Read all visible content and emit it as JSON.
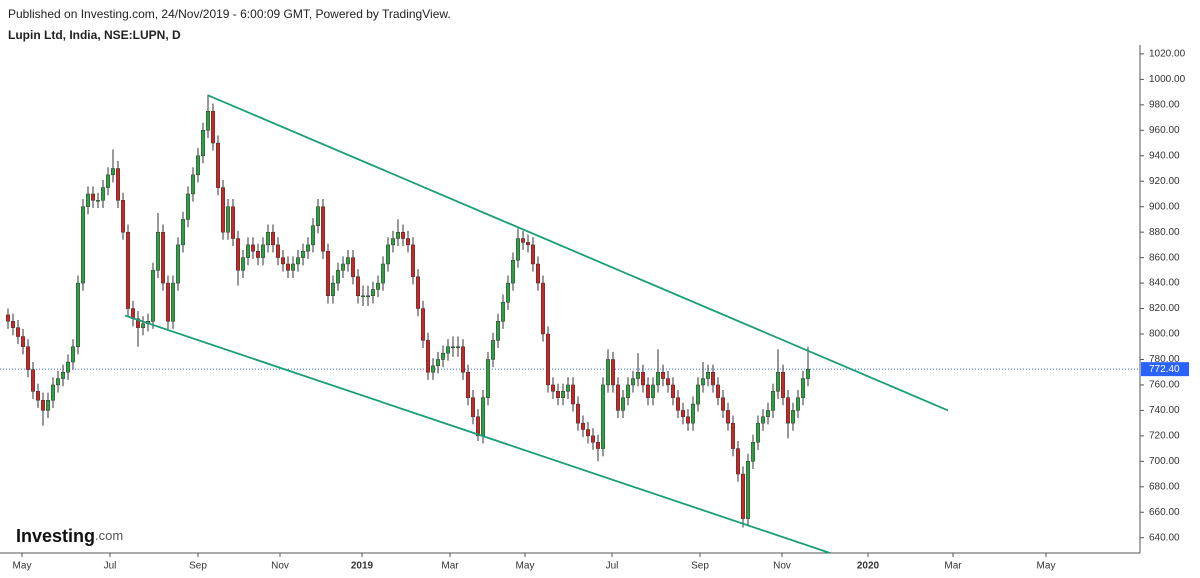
{
  "header": {
    "published": "Published on Investing.com, 24/Nov/2019 - 6:00:09 GMT, Powered by TradingView.",
    "symbol": "Lupin Ltd, India, NSE:LUPN, D"
  },
  "logo": {
    "name": "Investing",
    "suffix": ".com"
  },
  "chart_data": {
    "type": "candlestick",
    "up_color": "#2f9e44",
    "down_color": "#c62828",
    "wick_color": "#333333",
    "xlim": [
      -0.6,
      226.4
    ],
    "xticks": [
      {
        "value": 2.8,
        "label": "May"
      },
      {
        "value": 20.4,
        "label": "Jul"
      },
      {
        "value": 38,
        "label": "Sep"
      },
      {
        "value": 54.4,
        "label": "Nov"
      },
      {
        "value": 70.8,
        "label": "2019"
      },
      {
        "value": 88.4,
        "label": "Mar"
      },
      {
        "value": 103.4,
        "label": "May"
      },
      {
        "value": 120.8,
        "label": "Jul"
      },
      {
        "value": 138.4,
        "label": "Sep"
      },
      {
        "value": 154.8,
        "label": "Nov"
      },
      {
        "value": 172,
        "label": "2020"
      },
      {
        "value": 189,
        "label": "Mar"
      },
      {
        "value": 207.6,
        "label": "May"
      }
    ],
    "ylim": [
      628,
      1027
    ],
    "yticks": [
      {
        "value": 640,
        "label": "640.00"
      },
      {
        "value": 660,
        "label": "660.00"
      },
      {
        "value": 680,
        "label": "680.00"
      },
      {
        "value": 700,
        "label": "700.00"
      },
      {
        "value": 720,
        "label": "720.00"
      },
      {
        "value": 740,
        "label": "740.00"
      },
      {
        "value": 760,
        "label": "760.00"
      },
      {
        "value": 780,
        "label": "780.00"
      },
      {
        "value": 800,
        "label": "800.00"
      },
      {
        "value": 820,
        "label": "820.00"
      },
      {
        "value": 840,
        "label": "840.00"
      },
      {
        "value": 860,
        "label": "860.00"
      },
      {
        "value": 880,
        "label": "880.00"
      },
      {
        "value": 900,
        "label": "900.00"
      },
      {
        "value": 920,
        "label": "920.00"
      },
      {
        "value": 940,
        "label": "940.00"
      },
      {
        "value": 960,
        "label": "960.00"
      },
      {
        "value": 980,
        "label": "980.00"
      },
      {
        "value": 1000,
        "label": "1000.00"
      },
      {
        "value": 1020,
        "label": "1020.00"
      }
    ],
    "last_price": {
      "value": 772.4,
      "label": "772.40",
      "color": "#2962ff"
    },
    "trendline_color": "#1a9e77",
    "trendlines": [
      {
        "x": [
          40,
          188
        ],
        "y": [
          987.5,
          740
        ]
      },
      {
        "x": [
          23.4,
          164.4
        ],
        "y": [
          814.5,
          628
        ]
      }
    ],
    "ohlc": [
      [
        815,
        820,
        804,
        810
      ],
      [
        810,
        816,
        799,
        805
      ],
      [
        805,
        811,
        792,
        798
      ],
      [
        798,
        804,
        784,
        790
      ],
      [
        790,
        796,
        766,
        772
      ],
      [
        772,
        778,
        749,
        755
      ],
      [
        755,
        761,
        742,
        748
      ],
      [
        748,
        754,
        728,
        740
      ],
      [
        740,
        754,
        734,
        748
      ],
      [
        748,
        766,
        742,
        760
      ],
      [
        760,
        771,
        754,
        765
      ],
      [
        765,
        776,
        759,
        770
      ],
      [
        770,
        784,
        764,
        778
      ],
      [
        778,
        796,
        772,
        790
      ],
      [
        790,
        846,
        784,
        840
      ],
      [
        840,
        906,
        834,
        900
      ],
      [
        900,
        916,
        894,
        910
      ],
      [
        910,
        916,
        899,
        905
      ],
      [
        905,
        911,
        899,
        905
      ],
      [
        905,
        921,
        899,
        915
      ],
      [
        915,
        931,
        909,
        925
      ],
      [
        925,
        945,
        919,
        930
      ],
      [
        930,
        936,
        899,
        905
      ],
      [
        905,
        911,
        874,
        880
      ],
      [
        880,
        886,
        814,
        820
      ],
      [
        820,
        826,
        806,
        812
      ],
      [
        812,
        818,
        790,
        805
      ],
      [
        805,
        814,
        799,
        808
      ],
      [
        808,
        816,
        802,
        810
      ],
      [
        810,
        856,
        804,
        850
      ],
      [
        850,
        895,
        844,
        880
      ],
      [
        880,
        886,
        834,
        840
      ],
      [
        840,
        846,
        804,
        810
      ],
      [
        810,
        846,
        804,
        840
      ],
      [
        840,
        876,
        834,
        870
      ],
      [
        870,
        896,
        864,
        890
      ],
      [
        890,
        916,
        884,
        910
      ],
      [
        910,
        931,
        904,
        925
      ],
      [
        925,
        946,
        919,
        940
      ],
      [
        940,
        966,
        934,
        960
      ],
      [
        960,
        988,
        954,
        975
      ],
      [
        975,
        981,
        944,
        950
      ],
      [
        950,
        956,
        909,
        915
      ],
      [
        915,
        921,
        874,
        880
      ],
      [
        880,
        906,
        874,
        900
      ],
      [
        900,
        906,
        869,
        875
      ],
      [
        875,
        881,
        838,
        850
      ],
      [
        850,
        866,
        844,
        860
      ],
      [
        860,
        876,
        854,
        870
      ],
      [
        870,
        876,
        859,
        865
      ],
      [
        865,
        871,
        854,
        860
      ],
      [
        860,
        876,
        854,
        870
      ],
      [
        870,
        886,
        864,
        880
      ],
      [
        880,
        886,
        864,
        870
      ],
      [
        870,
        876,
        854,
        860
      ],
      [
        860,
        866,
        849,
        855
      ],
      [
        855,
        861,
        844,
        850
      ],
      [
        850,
        861,
        844,
        855
      ],
      [
        855,
        866,
        849,
        860
      ],
      [
        860,
        871,
        854,
        865
      ],
      [
        865,
        876,
        859,
        870
      ],
      [
        870,
        891,
        864,
        885
      ],
      [
        885,
        906,
        879,
        900
      ],
      [
        900,
        906,
        859,
        865
      ],
      [
        865,
        871,
        824,
        830
      ],
      [
        830,
        846,
        824,
        840
      ],
      [
        840,
        856,
        834,
        850
      ],
      [
        850,
        861,
        844,
        855
      ],
      [
        855,
        866,
        849,
        860
      ],
      [
        860,
        866,
        839,
        845
      ],
      [
        845,
        851,
        824,
        830
      ],
      [
        830,
        838,
        822,
        830
      ],
      [
        830,
        838,
        822,
        830
      ],
      [
        830,
        841,
        824,
        835
      ],
      [
        835,
        846,
        829,
        840
      ],
      [
        840,
        861,
        834,
        855
      ],
      [
        855,
        876,
        849,
        870
      ],
      [
        870,
        881,
        864,
        875
      ],
      [
        875,
        890,
        869,
        880
      ],
      [
        880,
        886,
        869,
        875
      ],
      [
        875,
        881,
        864,
        870
      ],
      [
        870,
        876,
        839,
        845
      ],
      [
        845,
        851,
        814,
        820
      ],
      [
        820,
        826,
        789,
        795
      ],
      [
        795,
        801,
        764,
        770
      ],
      [
        770,
        781,
        764,
        775
      ],
      [
        775,
        786,
        769,
        780
      ],
      [
        780,
        791,
        774,
        785
      ],
      [
        785,
        796,
        779,
        790
      ],
      [
        790,
        798,
        782,
        790
      ],
      [
        790,
        798,
        782,
        790
      ],
      [
        790,
        796,
        764,
        770
      ],
      [
        770,
        776,
        744,
        750
      ],
      [
        750,
        756,
        729,
        735
      ],
      [
        735,
        741,
        716,
        720
      ],
      [
        720,
        756,
        714,
        750
      ],
      [
        750,
        786,
        744,
        780
      ],
      [
        780,
        801,
        774,
        795
      ],
      [
        795,
        816,
        789,
        810
      ],
      [
        810,
        831,
        804,
        825
      ],
      [
        825,
        846,
        819,
        840
      ],
      [
        840,
        864,
        834,
        858
      ],
      [
        858,
        883,
        852,
        875
      ],
      [
        875,
        881,
        866,
        872
      ],
      [
        872,
        878,
        864,
        870
      ],
      [
        870,
        876,
        849,
        855
      ],
      [
        855,
        861,
        834,
        840
      ],
      [
        840,
        846,
        794,
        800
      ],
      [
        800,
        806,
        754,
        760
      ],
      [
        760,
        766,
        749,
        755
      ],
      [
        755,
        761,
        744,
        750
      ],
      [
        750,
        761,
        744,
        755
      ],
      [
        755,
        766,
        749,
        760
      ],
      [
        760,
        766,
        739,
        745
      ],
      [
        745,
        751,
        724,
        730
      ],
      [
        730,
        736,
        719,
        725
      ],
      [
        725,
        731,
        714,
        720
      ],
      [
        720,
        726,
        709,
        715
      ],
      [
        715,
        721,
        700,
        710
      ],
      [
        710,
        766,
        704,
        760
      ],
      [
        760,
        788,
        754,
        780
      ],
      [
        780,
        786,
        754,
        760
      ],
      [
        760,
        766,
        734,
        740
      ],
      [
        740,
        756,
        734,
        750
      ],
      [
        750,
        766,
        744,
        760
      ],
      [
        760,
        771,
        754,
        765
      ],
      [
        765,
        785,
        759,
        770
      ],
      [
        770,
        776,
        754,
        760
      ],
      [
        760,
        766,
        744,
        750
      ],
      [
        750,
        766,
        744,
        760
      ],
      [
        760,
        788,
        754,
        770
      ],
      [
        770,
        776,
        759,
        765
      ],
      [
        765,
        771,
        754,
        760
      ],
      [
        760,
        766,
        744,
        750
      ],
      [
        750,
        756,
        734,
        740
      ],
      [
        740,
        746,
        729,
        735
      ],
      [
        735,
        741,
        724,
        730
      ],
      [
        730,
        751,
        724,
        745
      ],
      [
        745,
        766,
        739,
        760
      ],
      [
        760,
        778,
        754,
        765
      ],
      [
        765,
        776,
        759,
        770
      ],
      [
        770,
        776,
        754,
        760
      ],
      [
        760,
        766,
        744,
        750
      ],
      [
        750,
        756,
        734,
        740
      ],
      [
        740,
        746,
        724,
        730
      ],
      [
        730,
        736,
        704,
        710
      ],
      [
        710,
        716,
        684,
        690
      ],
      [
        690,
        696,
        648,
        655
      ],
      [
        655,
        706,
        649,
        700
      ],
      [
        700,
        721,
        694,
        715
      ],
      [
        715,
        736,
        709,
        730
      ],
      [
        730,
        741,
        724,
        735
      ],
      [
        735,
        746,
        729,
        740
      ],
      [
        740,
        761,
        734,
        755
      ],
      [
        755,
        788,
        749,
        770
      ],
      [
        770,
        776,
        744,
        750
      ],
      [
        750,
        756,
        718,
        730
      ],
      [
        730,
        746,
        724,
        740
      ],
      [
        740,
        756,
        734,
        750
      ],
      [
        750,
        771,
        744,
        765
      ],
      [
        765,
        790,
        759,
        772.4
      ]
    ]
  }
}
